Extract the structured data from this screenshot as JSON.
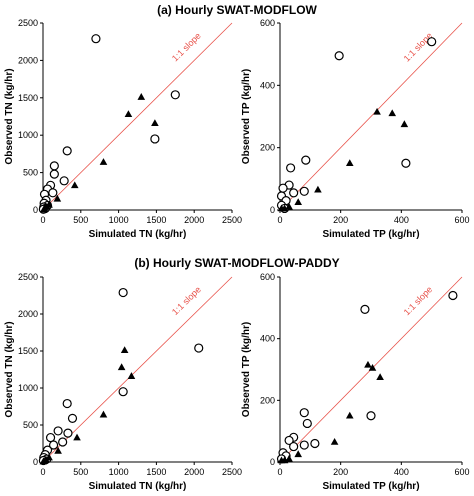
{
  "section_titles": {
    "a": "(a) Hourly SWAT-MODFLOW",
    "b": "(b) Hourly SWAT-MODFLOW-PADDY"
  },
  "colors": {
    "identity_line": "#e8524a",
    "markers": "#000000",
    "axes": "#000000"
  },
  "chart_data": [
    {
      "type": "scatter",
      "panel": "a-TN",
      "xlabel": "Simulated TN (kg/hr)",
      "ylabel": "Observed TN (kg/hr)",
      "xlim": [
        0,
        2500
      ],
      "ylim": [
        0,
        2500
      ],
      "xticks": [
        0,
        500,
        1000,
        1500,
        2000,
        2500
      ],
      "yticks": [
        0,
        500,
        1000,
        1500,
        2000,
        2500
      ],
      "annotation": "1:1 slope",
      "series": [
        {
          "marker": "open-circle",
          "points": [
            [
              700,
              2290
            ],
            [
              1750,
              1540
            ],
            [
              1480,
              950
            ],
            [
              320,
              790
            ],
            [
              150,
              590
            ],
            [
              150,
              480
            ],
            [
              280,
              390
            ],
            [
              100,
              330
            ],
            [
              60,
              280
            ],
            [
              130,
              230
            ],
            [
              20,
              210
            ],
            [
              40,
              130
            ],
            [
              15,
              90
            ],
            [
              60,
              60
            ],
            [
              10,
              40
            ],
            [
              30,
              20
            ],
            [
              5,
              10
            ]
          ]
        },
        {
          "marker": "filled-triangle",
          "points": [
            [
              1300,
              1510
            ],
            [
              1130,
              1280
            ],
            [
              1480,
              1160
            ],
            [
              800,
              640
            ],
            [
              420,
              330
            ],
            [
              190,
              150
            ],
            [
              80,
              70
            ],
            [
              40,
              40
            ],
            [
              20,
              15
            ],
            [
              10,
              5
            ]
          ]
        }
      ]
    },
    {
      "type": "scatter",
      "panel": "a-TP",
      "xlabel": "Simulated TP (kg/hr)",
      "ylabel": "Observed TP (kg/hr)",
      "xlim": [
        0,
        600
      ],
      "ylim": [
        0,
        600
      ],
      "xticks": [
        0,
        200,
        400,
        600
      ],
      "yticks": [
        0,
        200,
        400,
        600
      ],
      "annotation": "1:1 slope",
      "series": [
        {
          "marker": "open-circle",
          "points": [
            [
              500,
              540
            ],
            [
              195,
              495
            ],
            [
              415,
              150
            ],
            [
              85,
              160
            ],
            [
              35,
              135
            ],
            [
              30,
              80
            ],
            [
              10,
              70
            ],
            [
              80,
              60
            ],
            [
              45,
              55
            ],
            [
              5,
              45
            ],
            [
              20,
              30
            ],
            [
              5,
              15
            ],
            [
              15,
              5
            ]
          ]
        },
        {
          "marker": "filled-triangle",
          "points": [
            [
              320,
              315
            ],
            [
              370,
              310
            ],
            [
              410,
              275
            ],
            [
              230,
              150
            ],
            [
              125,
              65
            ],
            [
              60,
              25
            ],
            [
              30,
              10
            ],
            [
              15,
              5
            ],
            [
              5,
              5
            ]
          ]
        }
      ]
    },
    {
      "type": "scatter",
      "panel": "b-TN",
      "xlabel": "Simulated TN (kg/hr)",
      "ylabel": "Observed TN (kg/hr)",
      "xlim": [
        0,
        2500
      ],
      "ylim": [
        0,
        2500
      ],
      "xticks": [
        0,
        500,
        1000,
        1500,
        2000,
        2500
      ],
      "yticks": [
        0,
        500,
        1000,
        1500,
        2000,
        2500
      ],
      "annotation": "1:1 slope",
      "series": [
        {
          "marker": "open-circle",
          "points": [
            [
              1060,
              2290
            ],
            [
              2060,
              1540
            ],
            [
              1060,
              950
            ],
            [
              320,
              790
            ],
            [
              390,
              590
            ],
            [
              200,
              420
            ],
            [
              330,
              390
            ],
            [
              100,
              330
            ],
            [
              260,
              270
            ],
            [
              140,
              230
            ],
            [
              60,
              160
            ],
            [
              30,
              100
            ],
            [
              10,
              60
            ],
            [
              50,
              40
            ],
            [
              5,
              20
            ]
          ]
        },
        {
          "marker": "filled-triangle",
          "points": [
            [
              1080,
              1510
            ],
            [
              1040,
              1280
            ],
            [
              1170,
              1160
            ],
            [
              800,
              640
            ],
            [
              450,
              330
            ],
            [
              200,
              150
            ],
            [
              80,
              60
            ],
            [
              40,
              30
            ],
            [
              15,
              10
            ],
            [
              5,
              5
            ]
          ]
        }
      ]
    },
    {
      "type": "scatter",
      "panel": "b-TP",
      "xlabel": "Simulated TP (kg/hr)",
      "ylabel": "Observed TP (kg/hr)",
      "xlim": [
        0,
        600
      ],
      "ylim": [
        0,
        600
      ],
      "xticks": [
        0,
        200,
        400,
        600
      ],
      "yticks": [
        0,
        200,
        400,
        600
      ],
      "annotation": "1:1 slope",
      "series": [
        {
          "marker": "open-circle",
          "points": [
            [
              570,
              540
            ],
            [
              280,
              495
            ],
            [
              300,
              150
            ],
            [
              80,
              160
            ],
            [
              90,
              125
            ],
            [
              45,
              80
            ],
            [
              30,
              70
            ],
            [
              115,
              60
            ],
            [
              80,
              55
            ],
            [
              45,
              50
            ],
            [
              10,
              30
            ],
            [
              20,
              20
            ],
            [
              5,
              10
            ]
          ]
        },
        {
          "marker": "filled-triangle",
          "points": [
            [
              290,
              315
            ],
            [
              305,
              305
            ],
            [
              330,
              275
            ],
            [
              230,
              150
            ],
            [
              180,
              65
            ],
            [
              60,
              25
            ],
            [
              30,
              10
            ],
            [
              15,
              5
            ],
            [
              5,
              5
            ]
          ]
        }
      ]
    }
  ]
}
